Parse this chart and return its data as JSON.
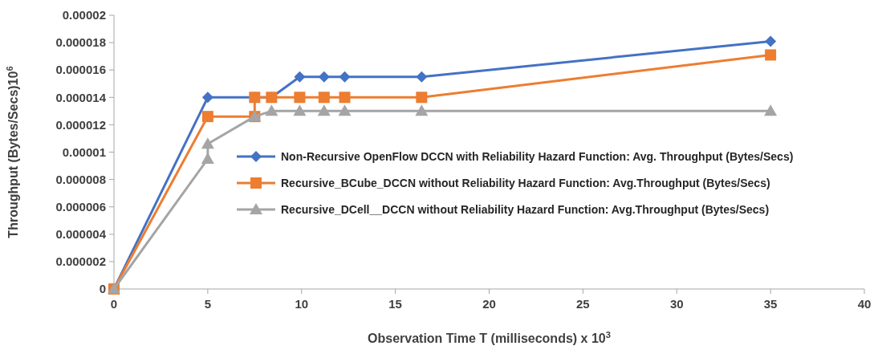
{
  "chart_data": {
    "type": "line",
    "xlabel": "Observation  Time T (milliseconds) x 10$^{3}$",
    "ylabel": "Throughput  (Bytes/Secs)10$^{6}$",
    "xlim": [
      0,
      40
    ],
    "xticks": [
      0,
      5,
      10,
      15,
      20,
      25,
      30,
      35,
      40
    ],
    "ylim": [
      0,
      2e-05
    ],
    "yticks": [
      0,
      {
        "value": 2e-06,
        "label": "0.000002"
      },
      {
        "value": 4e-06,
        "label": "0.000004"
      },
      {
        "value": 6e-06,
        "label": "0.000006"
      },
      {
        "value": 8e-06,
        "label": "0.000008"
      },
      {
        "value": 1e-05,
        "label": "0.00001"
      },
      {
        "value": 1.2e-05,
        "label": "0.000012"
      },
      {
        "value": 1.4e-05,
        "label": "0.000014"
      },
      {
        "value": 1.6e-05,
        "label": "0.000016"
      },
      {
        "value": 1.8e-05,
        "label": "0.000018"
      },
      {
        "value": 2e-05,
        "label": "0.00002"
      }
    ],
    "grid": false,
    "legend": "right",
    "line_style": "solid",
    "series": [
      {
        "name": "Non-Recursive OpenFlow DCCN  with Reliability Hazard Function:  Avg. Throughput (Bytes/Secs)",
        "color": "#4472c4",
        "marker": "diamond",
        "x": [
          0,
          5,
          7.5,
          8.4,
          9.9,
          11.2,
          12.3,
          16.4,
          35
        ],
        "values": [
          0,
          1.4e-05,
          1.4e-05,
          1.4e-05,
          1.55e-05,
          1.55e-05,
          1.55e-05,
          1.55e-05,
          1.81e-05
        ]
      },
      {
        "name": "Recursive_BCube_DCCN without Reliability Hazard Function: Avg.Throughput (Bytes/Secs)",
        "color": "#ed7d31",
        "marker": "square",
        "x": [
          0,
          5,
          7.5,
          7.5,
          8.4,
          9.9,
          11.2,
          12.3,
          16.4,
          35
        ],
        "values": [
          0,
          1.26e-05,
          1.26e-05,
          1.4e-05,
          1.4e-05,
          1.4e-05,
          1.4e-05,
          1.4e-05,
          1.4e-05,
          1.71e-05
        ]
      },
      {
        "name": "Recursive_DCell__DCCN without Reliability Hazard Function: Avg.Throughput (Bytes/Secs)",
        "color": "#a5a5a5",
        "marker": "triangle",
        "x": [
          0,
          5,
          5,
          7.5,
          8.4,
          9.9,
          11.2,
          12.3,
          16.4,
          35
        ],
        "values": [
          0,
          9.5e-06,
          1.06e-05,
          1.26e-05,
          1.3e-05,
          1.3e-05,
          1.3e-05,
          1.3e-05,
          1.3e-05,
          1.3e-05
        ]
      }
    ]
  }
}
